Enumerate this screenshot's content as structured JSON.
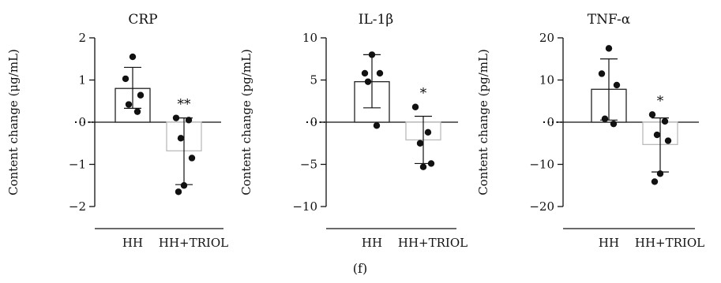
{
  "caption": "(f)",
  "chart_data": [
    {
      "type": "bar",
      "title": "CRP",
      "ylabel": "Content change (μg/mL)",
      "xlabel": "",
      "ylim": [
        -2,
        2
      ],
      "yticks": [
        2,
        1,
        0,
        -1,
        -2
      ],
      "ytick_labels": [
        "2",
        "1",
        "0",
        "−1",
        "−2"
      ],
      "categories": [
        "HH",
        "HH+TRIOL"
      ],
      "values": [
        0.8,
        -0.68
      ],
      "error_low": [
        0.33,
        -1.48
      ],
      "error_high": [
        1.3,
        0.1
      ],
      "points": [
        [
          1.55,
          1.03,
          0.64,
          0.42,
          0.25
        ],
        [
          0.1,
          0.05,
          -0.38,
          -0.85,
          -1.5,
          -1.65
        ]
      ],
      "significance": [
        "",
        "**"
      ],
      "bar_colors": [
        "#222222",
        "#bbbbbb"
      ]
    },
    {
      "type": "bar",
      "title": "IL-1β",
      "ylabel": "Content change (pg/mL)",
      "xlabel": "",
      "ylim": [
        -10,
        10
      ],
      "yticks": [
        10,
        5,
        0,
        -5,
        -10
      ],
      "ytick_labels": [
        "10",
        "5",
        "0",
        "−5",
        "−10"
      ],
      "categories": [
        "HH",
        "HH+TRIOL"
      ],
      "values": [
        4.8,
        -2.1
      ],
      "error_low": [
        1.7,
        -4.9
      ],
      "error_high": [
        8.0,
        0.7
      ],
      "points": [
        [
          8.0,
          5.8,
          5.8,
          4.8,
          -0.4
        ],
        [
          1.8,
          -1.2,
          -2.5,
          -4.9,
          -5.3
        ]
      ],
      "significance": [
        "",
        "*"
      ],
      "bar_colors": [
        "#222222",
        "#bbbbbb"
      ]
    },
    {
      "type": "bar",
      "title": "TNF-α",
      "ylabel": "Content change (pg/mL)",
      "xlabel": "",
      "ylim": [
        -20,
        20
      ],
      "yticks": [
        20,
        10,
        0,
        -10,
        -20
      ],
      "ytick_labels": [
        "20",
        "10",
        "0",
        "−10",
        "−20"
      ],
      "categories": [
        "HH",
        "HH+TRIOL"
      ],
      "values": [
        7.8,
        -5.3
      ],
      "error_low": [
        0.5,
        -11.8
      ],
      "error_high": [
        15.0,
        1.0
      ],
      "points": [
        [
          17.5,
          11.5,
          8.8,
          0.8,
          -0.4
        ],
        [
          1.8,
          0.2,
          -3.0,
          -4.4,
          -12.2,
          -14.1
        ]
      ],
      "significance": [
        "",
        "*"
      ],
      "bar_colors": [
        "#222222",
        "#bbbbbb"
      ]
    }
  ]
}
